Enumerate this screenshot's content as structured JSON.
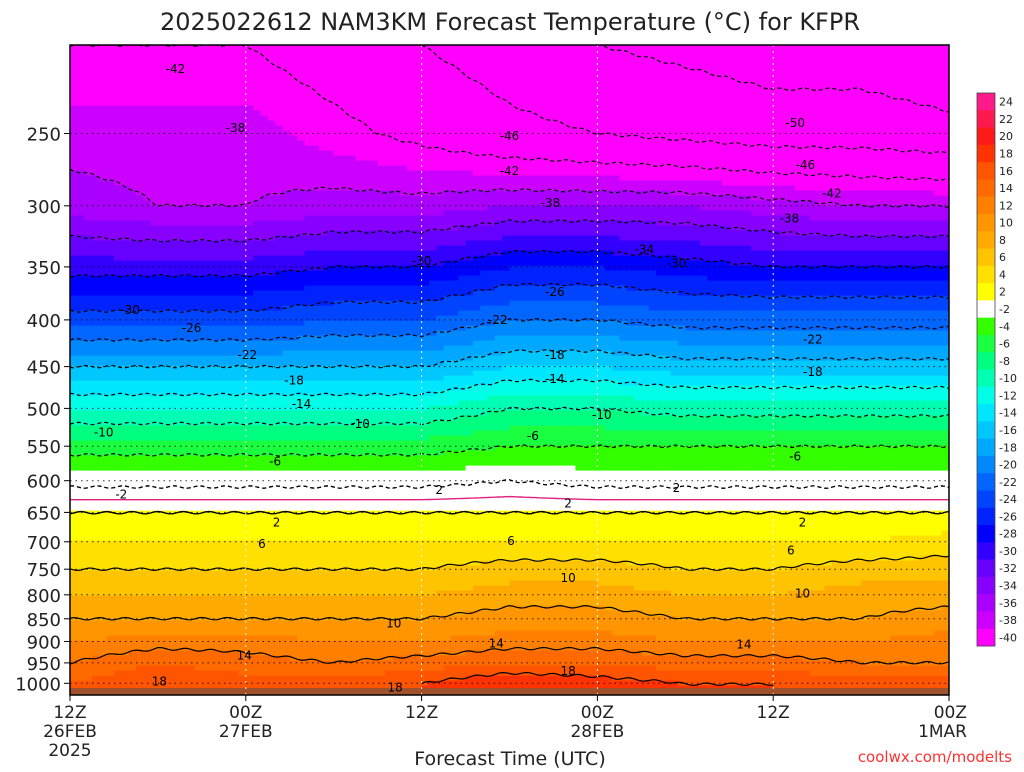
{
  "chart_data": {
    "type": "heatmap",
    "title": "2025022612 NAM3KM Forecast Temperature (°C) for KFPR",
    "xlabel": "Forecast Time (UTC)",
    "ylabel": "",
    "y_scale": "log",
    "ylim": [
      1030,
      200
    ],
    "xlim_hours": [
      0,
      60
    ],
    "x_ticks": [
      {
        "hour": 0,
        "lines": [
          "12Z",
          "26FEB",
          "2025"
        ]
      },
      {
        "hour": 12,
        "lines": [
          "00Z",
          "27FEB"
        ]
      },
      {
        "hour": 24,
        "lines": [
          "12Z"
        ]
      },
      {
        "hour": 36,
        "lines": [
          "00Z",
          "28FEB"
        ]
      },
      {
        "hour": 48,
        "lines": [
          "12Z"
        ]
      },
      {
        "hour": 60,
        "lines": [
          "00Z",
          "1MAR"
        ]
      }
    ],
    "y_ticks": [
      250,
      300,
      350,
      400,
      450,
      500,
      550,
      600,
      650,
      700,
      750,
      800,
      850,
      900,
      950,
      1000
    ],
    "colorbar": {
      "levels": [
        24,
        22,
        20,
        18,
        16,
        14,
        12,
        10,
        8,
        6,
        4,
        2,
        -2,
        -4,
        -6,
        -8,
        -10,
        -12,
        -14,
        -16,
        -18,
        -20,
        -22,
        -24,
        -26,
        -28,
        -30,
        -32,
        -34,
        -36,
        -38,
        -40
      ],
      "colors": [
        "#ff1a8c",
        "#ff1a4d",
        "#ff1a1a",
        "#ff3300",
        "#ff5500",
        "#ff6a00",
        "#ff8000",
        "#ff9500",
        "#ffaa00",
        "#ffc400",
        "#ffe000",
        "#ffff00",
        "#ffffff",
        "#33ff00",
        "#1aff40",
        "#00ff80",
        "#00ffb3",
        "#00ffe6",
        "#00e6ff",
        "#00c8ff",
        "#00a8ff",
        "#0088ff",
        "#0066ff",
        "#0044ff",
        "#0022ff",
        "#0000ff",
        "#3300ff",
        "#6600ff",
        "#8800ff",
        "#aa00ff",
        "#cc00ff",
        "#ff00ff"
      ]
    },
    "temperature_profile": {
      "hours": [
        0,
        6,
        12,
        18,
        24,
        30,
        36,
        42,
        48,
        54,
        60
      ],
      "levels_hpa": [
        1000,
        950,
        900,
        850,
        800,
        750,
        700,
        650,
        600,
        550,
        500,
        450,
        400,
        350,
        300,
        250,
        200
      ],
      "temperature_c": [
        [
          16,
          18,
          17,
          17,
          18,
          20,
          19,
          18,
          18,
          17,
          17
        ],
        [
          14,
          16,
          15,
          14,
          15,
          16,
          16,
          15,
          15,
          14,
          14
        ],
        [
          12,
          13,
          13,
          12,
          12,
          13,
          13,
          12,
          12,
          12,
          13
        ],
        [
          10,
          10,
          10,
          10,
          10,
          11,
          11,
          10,
          10,
          10,
          11
        ],
        [
          8,
          8,
          8,
          8,
          8,
          9,
          9,
          8,
          8,
          9,
          9
        ],
        [
          6,
          6,
          6,
          6,
          6,
          7,
          7,
          6,
          6,
          7,
          7
        ],
        [
          4,
          4,
          4,
          4,
          4,
          4,
          4,
          4,
          4,
          4,
          5
        ],
        [
          2,
          2,
          2,
          2,
          2,
          2,
          2,
          2,
          2,
          2,
          2
        ],
        [
          -3,
          -3,
          -3,
          -3,
          -3,
          -2,
          -3,
          -3,
          -3,
          -3,
          -3
        ],
        [
          -7,
          -7,
          -7,
          -7,
          -7,
          -6,
          -6,
          -6,
          -6,
          -6,
          -6
        ],
        [
          -12,
          -12,
          -12,
          -12,
          -12,
          -10,
          -10,
          -11,
          -11,
          -11,
          -11
        ],
        [
          -18,
          -18,
          -18,
          -18,
          -18,
          -16,
          -16,
          -17,
          -17,
          -17,
          -17
        ],
        [
          -25,
          -25,
          -25,
          -24,
          -24,
          -22,
          -22,
          -23,
          -23,
          -23,
          -23
        ],
        [
          -31,
          -31,
          -31,
          -30,
          -30,
          -28,
          -28,
          -29,
          -30,
          -30,
          -30
        ],
        [
          -37,
          -38,
          -38,
          -37,
          -37,
          -36,
          -36,
          -36,
          -37,
          -38,
          -38
        ],
        [
          -39,
          -39,
          -39,
          -41,
          -43,
          -45,
          -46,
          -47,
          -48,
          -48,
          -49
        ],
        [
          -42,
          -42,
          -42,
          -44,
          -46,
          -48,
          -50,
          -51,
          -52,
          -52,
          -53
        ]
      ]
    },
    "contour_labels": [
      {
        "text": "-42",
        "hour": 7.2,
        "hpa": 212
      },
      {
        "text": "-38",
        "hour": 11.3,
        "hpa": 246
      },
      {
        "text": "-46",
        "hour": 30.0,
        "hpa": 251
      },
      {
        "text": "-42",
        "hour": 30.0,
        "hpa": 274
      },
      {
        "text": "-38",
        "hour": 32.8,
        "hpa": 297
      },
      {
        "text": "-50",
        "hour": 49.5,
        "hpa": 243
      },
      {
        "text": "-46",
        "hour": 50.2,
        "hpa": 270
      },
      {
        "text": "-42",
        "hour": 52.0,
        "hpa": 290
      },
      {
        "text": "-38",
        "hour": 49.1,
        "hpa": 309
      },
      {
        "text": "-34",
        "hour": 39.2,
        "hpa": 334
      },
      {
        "text": "-30",
        "hour": 24.0,
        "hpa": 344
      },
      {
        "text": "-30",
        "hour": 41.4,
        "hpa": 346
      },
      {
        "text": "-30",
        "hour": 4.1,
        "hpa": 389
      },
      {
        "text": "-26",
        "hour": 33.1,
        "hpa": 372
      },
      {
        "text": "-26",
        "hour": 8.3,
        "hpa": 407
      },
      {
        "text": "-22",
        "hour": 29.2,
        "hpa": 399
      },
      {
        "text": "-22",
        "hour": 12.1,
        "hpa": 436
      },
      {
        "text": "-22",
        "hour": 50.7,
        "hpa": 419
      },
      {
        "text": "-18",
        "hour": 33.1,
        "hpa": 436
      },
      {
        "text": "-18",
        "hour": 15.3,
        "hpa": 465
      },
      {
        "text": "-18",
        "hour": 50.7,
        "hpa": 455
      },
      {
        "text": "-14",
        "hour": 33.1,
        "hpa": 463
      },
      {
        "text": "-14",
        "hour": 15.8,
        "hpa": 493
      },
      {
        "text": "-10",
        "hour": 2.3,
        "hpa": 530
      },
      {
        "text": "-10",
        "hour": 19.8,
        "hpa": 519
      },
      {
        "text": "-10",
        "hour": 36.3,
        "hpa": 507
      },
      {
        "text": "-6",
        "hour": 31.6,
        "hpa": 535
      },
      {
        "text": "-6",
        "hour": 14.0,
        "hpa": 570
      },
      {
        "text": "-6",
        "hour": 49.5,
        "hpa": 563
      },
      {
        "text": "-2",
        "hour": 3.5,
        "hpa": 620
      },
      {
        "text": "2",
        "hour": 25.2,
        "hpa": 613
      },
      {
        "text": "2",
        "hour": 41.4,
        "hpa": 610
      },
      {
        "text": "2",
        "hour": 34.0,
        "hpa": 634
      },
      {
        "text": "2",
        "hour": 14.1,
        "hpa": 665
      },
      {
        "text": "2",
        "hour": 50.0,
        "hpa": 665
      },
      {
        "text": "6",
        "hour": 13.1,
        "hpa": 702
      },
      {
        "text": "6",
        "hour": 30.1,
        "hpa": 697
      },
      {
        "text": "6",
        "hour": 49.2,
        "hpa": 714
      },
      {
        "text": "10",
        "hour": 34.0,
        "hpa": 765
      },
      {
        "text": "10",
        "hour": 50.0,
        "hpa": 795
      },
      {
        "text": "10",
        "hour": 22.1,
        "hpa": 858
      },
      {
        "text": "14",
        "hour": 29.1,
        "hpa": 902
      },
      {
        "text": "14",
        "hour": 11.9,
        "hpa": 930
      },
      {
        "text": "14",
        "hour": 46.0,
        "hpa": 904
      },
      {
        "text": "18",
        "hour": 34.0,
        "hpa": 967
      },
      {
        "text": "18",
        "hour": 6.1,
        "hpa": 993
      },
      {
        "text": "18",
        "hour": 22.2,
        "hpa": 1008
      }
    ],
    "annotation": "coolwx.com/modelts"
  }
}
